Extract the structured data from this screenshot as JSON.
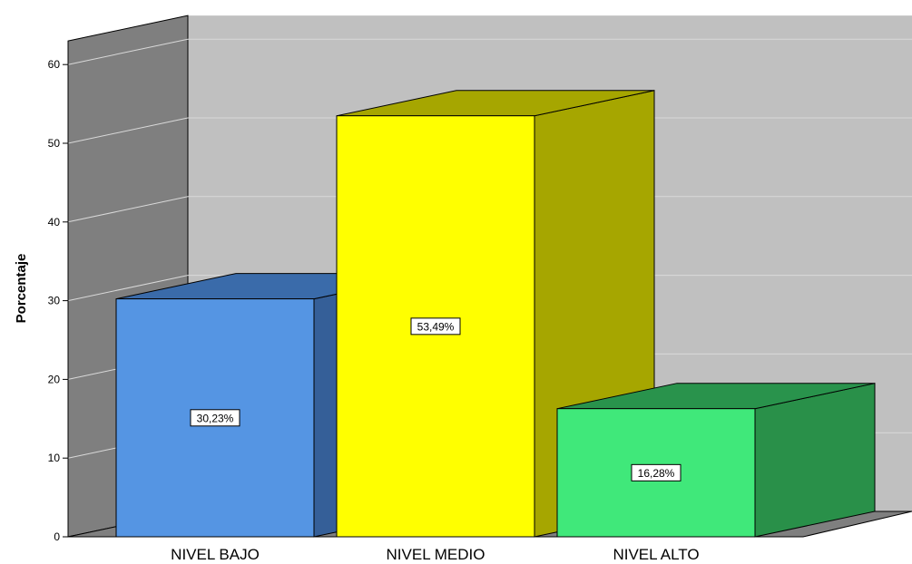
{
  "chart_data": {
    "type": "bar",
    "ylabel": "Porcentaje",
    "categories": [
      "NIVEL BAJO",
      "NIVEL MEDIO",
      "NIVEL ALTO"
    ],
    "values": [
      30.23,
      53.49,
      16.28
    ],
    "data_labels": [
      "30,23%",
      "53,49%",
      "16,28%"
    ],
    "yticks": [
      "0",
      "10",
      "20",
      "30",
      "40",
      "50",
      "60"
    ],
    "ylim": [
      0,
      60
    ],
    "grid": true,
    "three_d": true,
    "colors": {
      "bars": [
        {
          "front": "#5595E3",
          "top": "#3A6BAA",
          "side": "#355F98"
        },
        {
          "front": "#FFFF00",
          "top": "#A6A600",
          "side": "#A6A600"
        },
        {
          "front": "#40E87A",
          "top": "#29934C",
          "side": "#299049"
        }
      ],
      "back_wall": "#C0C0C0",
      "side_wall": "#7F7F7F",
      "floor": "#7F7F7F",
      "gridline": "#D9D9D9"
    }
  }
}
